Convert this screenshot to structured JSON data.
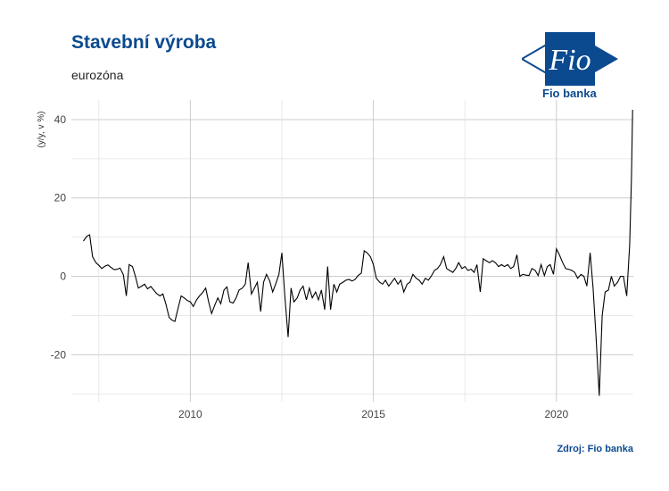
{
  "header": {
    "title": "Stavební výroba",
    "subtitle": "eurozóna",
    "source": "Zdroj: Fio banka"
  },
  "logo": {
    "mark_text": "Fio",
    "name": "Fio banka",
    "color": "#0b4a8f"
  },
  "chart_data": {
    "type": "line",
    "title": "Stavební výroba",
    "subtitle": "eurozóna",
    "ylabel": "(y/y, v %)",
    "xlabel": "",
    "xlim": [
      2006.75,
      2022.1
    ],
    "ylim": [
      -32,
      45
    ],
    "xticks": [
      2010,
      2015,
      2020
    ],
    "yticks": [
      -20,
      0,
      20,
      40
    ],
    "grid": true,
    "legend": "none",
    "line_color": "#000000",
    "series": [
      {
        "name": "",
        "points": [
          [
            2007.08,
            9.0
          ],
          [
            2007.17,
            10.2
          ],
          [
            2007.25,
            10.6
          ],
          [
            2007.33,
            5.0
          ],
          [
            2007.42,
            3.5
          ],
          [
            2007.5,
            2.8
          ],
          [
            2007.58,
            2.0
          ],
          [
            2007.67,
            2.6
          ],
          [
            2007.75,
            2.9
          ],
          [
            2007.83,
            2.3
          ],
          [
            2007.92,
            1.7
          ],
          [
            2008.0,
            1.8
          ],
          [
            2008.08,
            2.1
          ],
          [
            2008.17,
            0.4
          ],
          [
            2008.25,
            -5.0
          ],
          [
            2008.33,
            3.0
          ],
          [
            2008.42,
            2.5
          ],
          [
            2008.5,
            0.0
          ],
          [
            2008.58,
            -3.0
          ],
          [
            2008.67,
            -2.5
          ],
          [
            2008.75,
            -2.0
          ],
          [
            2008.83,
            -3.2
          ],
          [
            2008.92,
            -2.6
          ],
          [
            2009.0,
            -3.5
          ],
          [
            2009.08,
            -4.4
          ],
          [
            2009.17,
            -5.0
          ],
          [
            2009.25,
            -4.5
          ],
          [
            2009.33,
            -7.0
          ],
          [
            2009.42,
            -10.5
          ],
          [
            2009.5,
            -11.2
          ],
          [
            2009.58,
            -11.5
          ],
          [
            2009.67,
            -8.0
          ],
          [
            2009.75,
            -5.0
          ],
          [
            2009.83,
            -5.5
          ],
          [
            2009.92,
            -6.2
          ],
          [
            2010.0,
            -6.5
          ],
          [
            2010.08,
            -7.7
          ],
          [
            2010.17,
            -6.0
          ],
          [
            2010.25,
            -5.0
          ],
          [
            2010.33,
            -4.2
          ],
          [
            2010.42,
            -3.0
          ],
          [
            2010.5,
            -6.5
          ],
          [
            2010.58,
            -9.5
          ],
          [
            2010.67,
            -7.3
          ],
          [
            2010.75,
            -5.5
          ],
          [
            2010.83,
            -7.0
          ],
          [
            2010.92,
            -3.5
          ],
          [
            2011.0,
            -2.7
          ],
          [
            2011.08,
            -6.5
          ],
          [
            2011.17,
            -6.8
          ],
          [
            2011.25,
            -5.5
          ],
          [
            2011.33,
            -3.5
          ],
          [
            2011.42,
            -3.0
          ],
          [
            2011.5,
            -2.0
          ],
          [
            2011.58,
            3.5
          ],
          [
            2011.67,
            -4.5
          ],
          [
            2011.75,
            -3.0
          ],
          [
            2011.83,
            -1.5
          ],
          [
            2011.92,
            -9.0
          ],
          [
            2012.0,
            -1.5
          ],
          [
            2012.08,
            0.5
          ],
          [
            2012.17,
            -1.2
          ],
          [
            2012.25,
            -4.0
          ],
          [
            2012.33,
            -2.0
          ],
          [
            2012.42,
            0.5
          ],
          [
            2012.5,
            6.0
          ],
          [
            2012.58,
            -5.0
          ],
          [
            2012.67,
            -15.5
          ],
          [
            2012.75,
            -3.0
          ],
          [
            2012.83,
            -6.5
          ],
          [
            2012.92,
            -5.5
          ],
          [
            2013.0,
            -3.5
          ],
          [
            2013.08,
            -2.5
          ],
          [
            2013.17,
            -6.0
          ],
          [
            2013.25,
            -3.0
          ],
          [
            2013.33,
            -5.5
          ],
          [
            2013.42,
            -4.0
          ],
          [
            2013.5,
            -6.0
          ],
          [
            2013.58,
            -3.5
          ],
          [
            2013.67,
            -8.5
          ],
          [
            2013.75,
            2.5
          ],
          [
            2013.83,
            -8.5
          ],
          [
            2013.92,
            -2.0
          ],
          [
            2014.0,
            -4.0
          ],
          [
            2014.08,
            -2.0
          ],
          [
            2014.17,
            -1.5
          ],
          [
            2014.25,
            -1.0
          ],
          [
            2014.33,
            -0.8
          ],
          [
            2014.42,
            -1.2
          ],
          [
            2014.5,
            -0.8
          ],
          [
            2014.58,
            0.2
          ],
          [
            2014.67,
            0.8
          ],
          [
            2014.75,
            6.5
          ],
          [
            2014.83,
            6.0
          ],
          [
            2014.92,
            5.0
          ],
          [
            2015.0,
            3.0
          ],
          [
            2015.08,
            -0.5
          ],
          [
            2015.17,
            -1.5
          ],
          [
            2015.25,
            -2.0
          ],
          [
            2015.33,
            -1.0
          ],
          [
            2015.42,
            -2.5
          ],
          [
            2015.5,
            -1.5
          ],
          [
            2015.58,
            -0.5
          ],
          [
            2015.67,
            -2.0
          ],
          [
            2015.75,
            -1.0
          ],
          [
            2015.83,
            -4.0
          ],
          [
            2015.92,
            -2.0
          ],
          [
            2016.0,
            -1.5
          ],
          [
            2016.08,
            0.5
          ],
          [
            2016.17,
            -0.5
          ],
          [
            2016.25,
            -1.0
          ],
          [
            2016.33,
            -2.0
          ],
          [
            2016.42,
            -0.5
          ],
          [
            2016.5,
            -1.0
          ],
          [
            2016.58,
            0.0
          ],
          [
            2016.67,
            1.5
          ],
          [
            2016.75,
            2.0
          ],
          [
            2016.83,
            3.0
          ],
          [
            2016.92,
            5.0
          ],
          [
            2017.0,
            2.0
          ],
          [
            2017.08,
            1.5
          ],
          [
            2017.17,
            1.0
          ],
          [
            2017.25,
            2.0
          ],
          [
            2017.33,
            3.5
          ],
          [
            2017.42,
            2.0
          ],
          [
            2017.5,
            2.5
          ],
          [
            2017.58,
            1.5
          ],
          [
            2017.67,
            1.8
          ],
          [
            2017.75,
            1.0
          ],
          [
            2017.83,
            3.0
          ],
          [
            2017.92,
            -4.0
          ],
          [
            2018.0,
            4.5
          ],
          [
            2018.08,
            4.0
          ],
          [
            2018.17,
            3.5
          ],
          [
            2018.25,
            4.0
          ],
          [
            2018.33,
            3.5
          ],
          [
            2018.42,
            2.5
          ],
          [
            2018.5,
            3.0
          ],
          [
            2018.58,
            2.5
          ],
          [
            2018.67,
            3.0
          ],
          [
            2018.75,
            2.0
          ],
          [
            2018.83,
            2.5
          ],
          [
            2018.92,
            5.5
          ],
          [
            2019.0,
            0.0
          ],
          [
            2019.08,
            0.5
          ],
          [
            2019.17,
            0.3
          ],
          [
            2019.25,
            0.2
          ],
          [
            2019.33,
            2.0
          ],
          [
            2019.42,
            1.5
          ],
          [
            2019.5,
            0.2
          ],
          [
            2019.58,
            3.0
          ],
          [
            2019.67,
            0.2
          ],
          [
            2019.75,
            2.5
          ],
          [
            2019.83,
            3.0
          ],
          [
            2019.92,
            0.5
          ],
          [
            2020.0,
            7.0
          ],
          [
            2020.08,
            5.5
          ],
          [
            2020.17,
            3.5
          ],
          [
            2020.25,
            2.0
          ],
          [
            2020.33,
            1.8
          ],
          [
            2020.42,
            1.5
          ],
          [
            2020.5,
            1.0
          ],
          [
            2020.58,
            -0.5
          ],
          [
            2020.67,
            0.5
          ],
          [
            2020.75,
            0.0
          ],
          [
            2020.83,
            -2.5
          ],
          [
            2020.92,
            6.0
          ],
          [
            2021.0,
            -3.0
          ],
          [
            2021.08,
            -15.0
          ],
          [
            2021.17,
            -30.5
          ],
          [
            2021.25,
            -10.0
          ],
          [
            2021.33,
            -4.0
          ],
          [
            2021.42,
            -3.5
          ],
          [
            2021.5,
            0.0
          ],
          [
            2021.58,
            -2.5
          ],
          [
            2021.67,
            -1.5
          ],
          [
            2021.75,
            0.0
          ],
          [
            2021.83,
            0.0
          ],
          [
            2021.92,
            -5.0
          ],
          [
            2022.0,
            8.0
          ],
          [
            2022.05,
            25.0
          ],
          [
            2022.08,
            42.5
          ]
        ]
      }
    ]
  }
}
